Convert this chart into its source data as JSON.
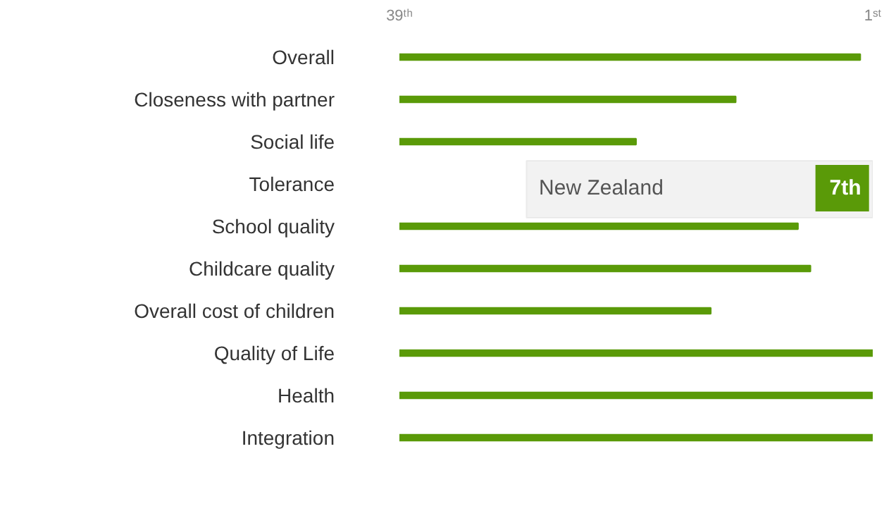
{
  "chart_data": {
    "type": "bar",
    "orientation": "horizontal",
    "categories": [
      "Overall",
      "Closeness with partner",
      "Social life",
      "Tolerance",
      "School quality",
      "Childcare quality",
      "Overall cost of children",
      "Quality of Life",
      "Health",
      "Integration"
    ],
    "values": [
      -37,
      -27,
      -19,
      null,
      -32,
      -33,
      -25,
      -38,
      -38,
      -38
    ],
    "base": [
      39,
      39,
      39,
      null,
      39,
      39,
      39,
      39,
      39,
      39
    ],
    "color": "#5a9a08",
    "xlim": [
      39,
      1
    ],
    "xticks": [
      {
        "value": 39,
        "label": "39ᵗʰ"
      },
      {
        "value": 1,
        "label": "1ˢᵗ"
      }
    ],
    "grid": false,
    "annotations": [
      "New Zealand",
      "7th"
    ]
  }
}
